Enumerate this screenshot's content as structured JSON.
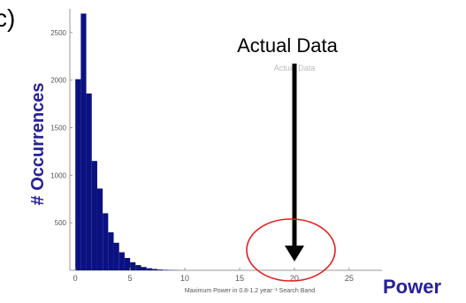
{
  "panel_label": "c)",
  "annotation": {
    "text": "Actual Data",
    "faint_text": "Actual Data"
  },
  "y_axis_title": "# Occurrences",
  "x_axis_title_outer": "Power",
  "colors": {
    "bar": "#0b1280",
    "axis_title": "#27209a",
    "circle": "#e02020",
    "arrow": "#000000",
    "tick_text": "#555555"
  },
  "chart_data": {
    "type": "bar",
    "xlabel": "Maximum Power in 0.8-1.2 year⁻¹ Search Band",
    "ylabel": "",
    "xlim": [
      -0.5,
      28
    ],
    "ylim": [
      0,
      2750
    ],
    "x_ticks": [
      0,
      5,
      10,
      15,
      20,
      25
    ],
    "y_ticks": [
      500,
      1000,
      1500,
      2000,
      2500
    ],
    "bin_width": 0.5,
    "bin_starts": [
      0,
      0.5,
      1,
      1.5,
      2,
      2.5,
      3,
      3.5,
      4,
      4.5,
      5,
      5.5,
      6,
      6.5,
      7,
      7.5,
      8,
      8.5,
      9
    ],
    "values": [
      2010,
      2700,
      1860,
      1150,
      860,
      600,
      400,
      290,
      190,
      130,
      85,
      55,
      35,
      22,
      14,
      8,
      5,
      3,
      2
    ],
    "annotation_x": 20
  }
}
